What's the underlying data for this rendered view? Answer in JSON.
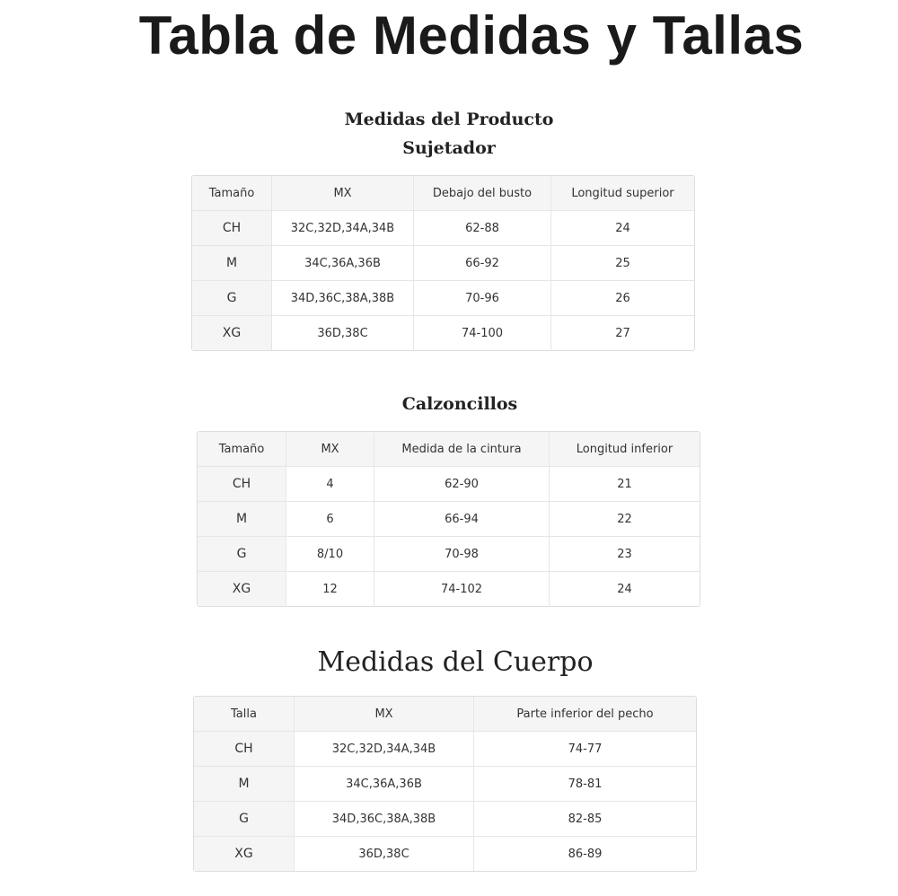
{
  "title": "Tabla de Medidas y Tallas",
  "product_section": {
    "heading": "Medidas del Producto",
    "bra": {
      "heading": "Sujetador",
      "columns": [
        "Tamaño",
        "MX",
        "Debajo del busto",
        "Longitud superior"
      ],
      "rows": [
        [
          "CH",
          "32C,32D,34A,34B",
          "62-88",
          "24"
        ],
        [
          "M",
          "34C,36A,36B",
          "66-92",
          "25"
        ],
        [
          "G",
          "34D,36C,38A,38B",
          "70-96",
          "26"
        ],
        [
          "XG",
          "36D,38C",
          "74-100",
          "27"
        ]
      ]
    },
    "briefs": {
      "heading": "Calzoncillos",
      "columns": [
        "Tamaño",
        "MX",
        "Medida de la cintura",
        "Longitud inferior"
      ],
      "rows": [
        [
          "CH",
          "4",
          "62-90",
          "21"
        ],
        [
          "M",
          "6",
          "66-94",
          "22"
        ],
        [
          "G",
          "8/10",
          "70-98",
          "23"
        ],
        [
          "XG",
          "12",
          "74-102",
          "24"
        ]
      ]
    }
  },
  "body_section": {
    "heading": "Medidas del Cuerpo",
    "columns": [
      "Talla",
      "MX",
      "Parte inferior del pecho"
    ],
    "rows": [
      [
        "CH",
        "32C,32D,34A,34B",
        "74-77"
      ],
      [
        "M",
        "34C,36A,36B",
        "78-81"
      ],
      [
        "G",
        "34D,36C,38A,38B",
        "82-85"
      ],
      [
        "XG",
        "36D,38C",
        "86-89"
      ]
    ]
  }
}
